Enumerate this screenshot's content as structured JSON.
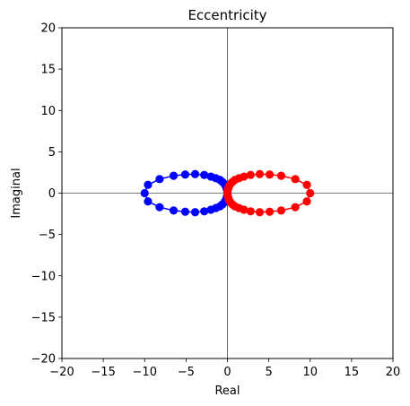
{
  "chart_data": {
    "type": "scatter",
    "title": "Eccentricity",
    "xlabel": "Real",
    "ylabel": "Imaginal",
    "xlim": [
      -20,
      20
    ],
    "ylim": [
      -20,
      20
    ],
    "xticks": [
      -20,
      -15,
      -10,
      -5,
      0,
      5,
      10,
      15,
      20
    ],
    "yticks": [
      -20,
      -15,
      -10,
      -5,
      0,
      5,
      10,
      15,
      20
    ],
    "xtick_labels": [
      "−20",
      "−15",
      "−10",
      "−5",
      "0",
      "5",
      "10",
      "15",
      "20"
    ],
    "ytick_labels": [
      "−20",
      "−15",
      "−10",
      "−5",
      "0",
      "5",
      "10",
      "15",
      "20"
    ],
    "grid": false,
    "reference_lines": {
      "x": 0,
      "y": 0,
      "color": "#000000"
    },
    "series": [
      {
        "color": "#0000ff",
        "points": [
          [
            -10.0,
            0.0
          ],
          [
            -9.6,
            1.0
          ],
          [
            -9.6,
            -1.0
          ],
          [
            -8.2,
            1.7
          ],
          [
            -8.2,
            -1.7
          ],
          [
            -6.5,
            2.1
          ],
          [
            -6.5,
            -2.1
          ],
          [
            -5.1,
            2.25
          ],
          [
            -5.1,
            -2.25
          ],
          [
            -3.9,
            2.3
          ],
          [
            -3.9,
            -2.3
          ],
          [
            -2.8,
            2.2
          ],
          [
            -2.8,
            -2.2
          ],
          [
            -2.0,
            2.0
          ],
          [
            -2.0,
            -2.0
          ],
          [
            -1.4,
            1.8
          ],
          [
            -1.4,
            -1.8
          ],
          [
            -0.9,
            1.6
          ],
          [
            -0.9,
            -1.6
          ],
          [
            -0.6,
            1.35
          ],
          [
            -0.6,
            -1.35
          ],
          [
            -0.35,
            1.1
          ],
          [
            -0.35,
            -1.1
          ],
          [
            -0.2,
            0.85
          ],
          [
            -0.2,
            -0.85
          ],
          [
            -0.1,
            0.55
          ],
          [
            -0.1,
            -0.55
          ],
          [
            -0.03,
            0.3
          ],
          [
            -0.03,
            -0.3
          ],
          [
            0.0,
            0.0
          ]
        ]
      },
      {
        "color": "#ff0000",
        "points": [
          [
            10.0,
            0.0
          ],
          [
            9.6,
            1.0
          ],
          [
            9.6,
            -1.0
          ],
          [
            8.2,
            1.7
          ],
          [
            8.2,
            -1.7
          ],
          [
            6.5,
            2.1
          ],
          [
            6.5,
            -2.1
          ],
          [
            5.1,
            2.25
          ],
          [
            5.1,
            -2.25
          ],
          [
            3.9,
            2.3
          ],
          [
            3.9,
            -2.3
          ],
          [
            2.8,
            2.2
          ],
          [
            2.8,
            -2.2
          ],
          [
            2.0,
            2.0
          ],
          [
            2.0,
            -2.0
          ],
          [
            1.4,
            1.8
          ],
          [
            1.4,
            -1.8
          ],
          [
            0.9,
            1.6
          ],
          [
            0.9,
            -1.6
          ],
          [
            0.6,
            1.35
          ],
          [
            0.6,
            -1.35
          ],
          [
            0.35,
            1.1
          ],
          [
            0.35,
            -1.1
          ],
          [
            0.2,
            0.85
          ],
          [
            0.2,
            -0.85
          ],
          [
            0.1,
            0.55
          ],
          [
            0.1,
            -0.55
          ],
          [
            0.03,
            0.3
          ],
          [
            0.03,
            -0.3
          ],
          [
            0.0,
            0.0
          ]
        ]
      }
    ]
  }
}
